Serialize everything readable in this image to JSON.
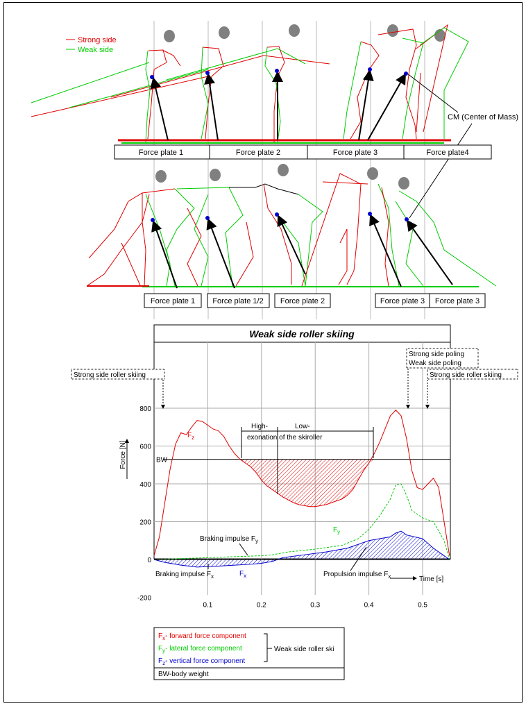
{
  "legend": {
    "strong": "Strong side",
    "weak": "Weak side",
    "strong_color": "#e00000",
    "weak_color": "#00cc00"
  },
  "cm_label": "CM (Center of Mass)",
  "plates_row1": [
    "Force plate 1",
    "Force plate 2",
    "Force plate 3",
    "Force plate4"
  ],
  "plates_row2": [
    "Force plate 1",
    "Force plate 1/2",
    "Force plate 2",
    "Force plate 3",
    "Force plate 3"
  ],
  "chart_title": "Weak side roller skiing",
  "annotations": {
    "strong_roller_left": "Strong side roller skiing",
    "strong_poling": "Strong side poling",
    "weak_poling": "Weak side poling",
    "strong_roller_right": "Strong side roller skiing",
    "high": "High-",
    "low": "Low-",
    "exonation": "exonation of the skiroller",
    "bw": "BW",
    "fz": "F",
    "fz_sub": "z",
    "fy": "F",
    "fy_sub": "y",
    "fx": "F",
    "fx_sub": "x",
    "braking_fy": "Braking impulse F",
    "braking_fy_sub": "y",
    "braking_fx": "Braking impulse F",
    "braking_fx_sub": "x",
    "propulsion_fx": "Propulsion impulse F",
    "propulsion_fx_sub": "x"
  },
  "axes": {
    "ylabel": "Force [N]",
    "xlabel": "Time [s]",
    "yticks": [
      "800",
      "600",
      "400",
      "200",
      "0",
      "-200"
    ],
    "xticks": [
      "0.1",
      "0.2",
      "0.3",
      "0.4",
      "0.5"
    ]
  },
  "chart_data": {
    "type": "line",
    "xlim": [
      0,
      0.55
    ],
    "ylim": [
      -200,
      900
    ],
    "bw": 530,
    "series": [
      {
        "name": "Fz",
        "color": "#e00000",
        "style": "solid",
        "x": [
          0.0,
          0.01,
          0.02,
          0.03,
          0.04,
          0.05,
          0.06,
          0.07,
          0.08,
          0.09,
          0.1,
          0.11,
          0.12,
          0.13,
          0.14,
          0.15,
          0.16,
          0.17,
          0.18,
          0.19,
          0.2,
          0.21,
          0.22,
          0.23,
          0.24,
          0.25,
          0.26,
          0.27,
          0.28,
          0.29,
          0.3,
          0.31,
          0.32,
          0.33,
          0.34,
          0.35,
          0.36,
          0.37,
          0.38,
          0.39,
          0.4,
          0.41,
          0.42,
          0.43,
          0.44,
          0.45,
          0.46,
          0.47,
          0.48,
          0.49,
          0.5,
          0.51,
          0.52,
          0.53,
          0.54,
          0.55
        ],
        "y": [
          20,
          120,
          300,
          480,
          610,
          670,
          660,
          700,
          735,
          730,
          710,
          690,
          680,
          650,
          600,
          560,
          530,
          510,
          490,
          460,
          420,
          390,
          370,
          350,
          330,
          315,
          300,
          290,
          285,
          280,
          280,
          285,
          290,
          300,
          310,
          320,
          340,
          370,
          420,
          470,
          510,
          560,
          620,
          690,
          760,
          790,
          760,
          640,
          470,
          380,
          370,
          400,
          430,
          380,
          200,
          20
        ]
      },
      {
        "name": "Fy",
        "color": "#00cc00",
        "style": "dashed",
        "x": [
          0.0,
          0.05,
          0.1,
          0.15,
          0.2,
          0.22,
          0.25,
          0.3,
          0.35,
          0.38,
          0.4,
          0.42,
          0.44,
          0.45,
          0.46,
          0.47,
          0.48,
          0.5,
          0.52,
          0.54,
          0.55
        ],
        "y": [
          0,
          5,
          10,
          15,
          20,
          25,
          40,
          55,
          75,
          110,
          160,
          230,
          320,
          395,
          400,
          340,
          260,
          220,
          200,
          100,
          0
        ]
      },
      {
        "name": "Fx",
        "color": "#0000cc",
        "style": "solid",
        "x": [
          0.0,
          0.02,
          0.05,
          0.08,
          0.12,
          0.15,
          0.18,
          0.2,
          0.22,
          0.24,
          0.28,
          0.32,
          0.36,
          0.38,
          0.4,
          0.42,
          0.44,
          0.45,
          0.46,
          0.47,
          0.5,
          0.52,
          0.54,
          0.55
        ],
        "y": [
          0,
          -15,
          -30,
          -40,
          -35,
          -30,
          -25,
          -20,
          -10,
          10,
          25,
          40,
          60,
          80,
          100,
          110,
          120,
          140,
          150,
          130,
          110,
          60,
          20,
          0
        ]
      }
    ]
  },
  "bottom_legend": {
    "fx_letter": "F",
    "fx_sub": "x",
    "fx_text": "- forward force component",
    "fy_letter": "F",
    "fy_sub": "y",
    "fy_text": "- lateral force component",
    "fz_letter": "F",
    "fz_sub": "z",
    "fz_text": "- vertical force component",
    "group": "Weak side roller ski",
    "bw": "BW-body weight"
  }
}
